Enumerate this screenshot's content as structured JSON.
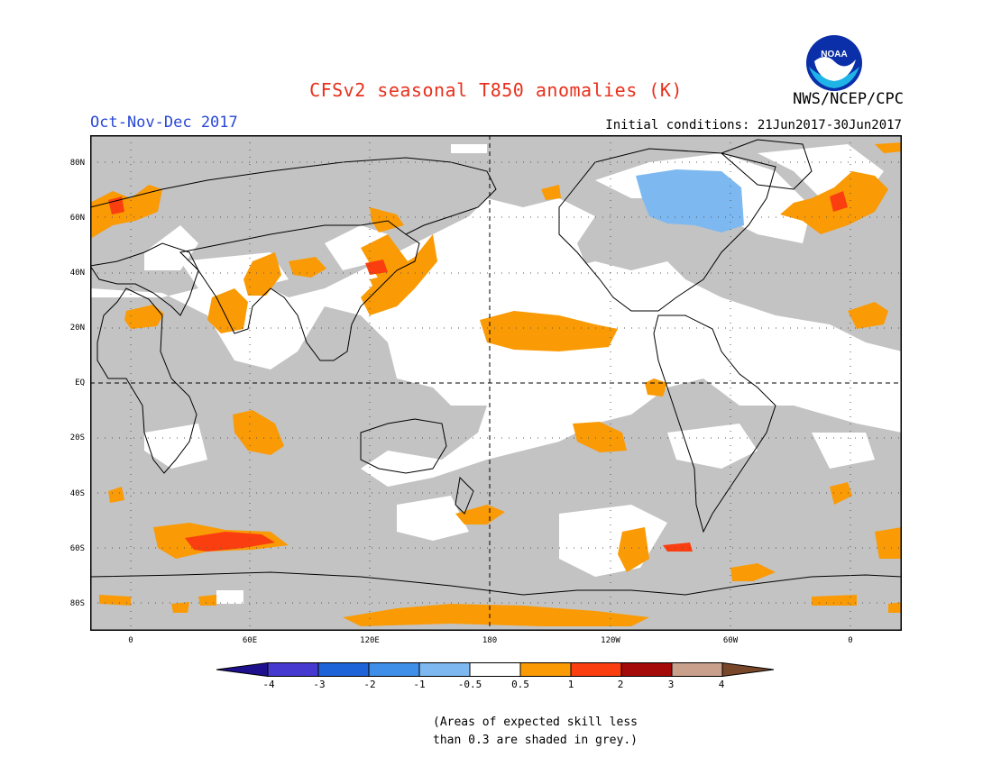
{
  "title": "CFSv2 seasonal T850 anomalies (K)",
  "period": "Oct-Nov-Dec 2017",
  "initial_conditions": "Initial conditions: 21Jun2017-30Jun2017",
  "agency": "NWS/NCEP/CPC",
  "logo_text": "NOAA",
  "lat_labels": [
    "80N",
    "60N",
    "40N",
    "20N",
    "EQ",
    "20S",
    "40S",
    "60S",
    "80S"
  ],
  "lon_labels": [
    "0",
    "60E",
    "120E",
    "180",
    "120W",
    "60W",
    "0"
  ],
  "colorbar": {
    "ticks": [
      "-4",
      "-3",
      "-2",
      "-1",
      "-0.5",
      "0.5",
      "1",
      "2",
      "3",
      "4"
    ],
    "colors": [
      "#1e0f8c",
      "#4639cf",
      "#1f63d9",
      "#3f8ee8",
      "#7db9f0",
      "#ffffff",
      "#fa9a05",
      "#fa3e0f",
      "#a50a0a",
      "#c8a08c",
      "#784628"
    ]
  },
  "note_line1": "(Areas of expected skill less",
  "note_line2": "than 0.3 are shaded in grey.)",
  "legend_colors": {
    "grey": "#c3c3c3",
    "orange": "#fa9a05",
    "red": "#fa3e0f",
    "light_blue": "#7db9f0"
  }
}
